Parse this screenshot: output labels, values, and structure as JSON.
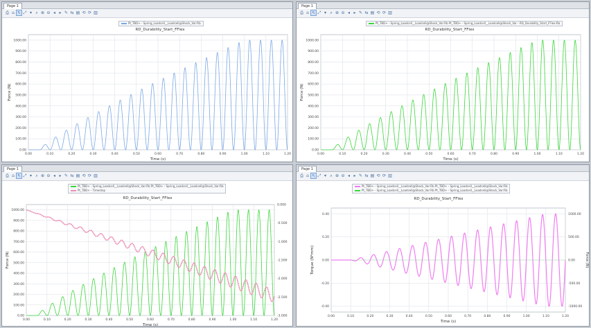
{
  "panes": [
    {
      "tab": "Page 1",
      "title": "RD_Durability_Start_FFlex",
      "legend": [
        "Pt_TBD+ - Spring_Loadcell__Loadcell@Shock_Var:Rb"
      ],
      "xlabel": "Time (s)",
      "ylabel": "Force (N)",
      "xticks": [
        "0.00",
        "0.10",
        "0.20",
        "0.30",
        "0.40",
        "0.50",
        "0.60",
        "0.70",
        "0.80",
        "0.90",
        "1.00",
        "1.10",
        "1.20"
      ],
      "yticks": [
        "0.00",
        "100.00",
        "200.00",
        "300.00",
        "400.00",
        "500.00",
        "600.00",
        "700.00",
        "800.00",
        "900.00",
        "1000.00"
      ]
    },
    {
      "tab": "Page 1",
      "title": "RD_Durability_Start_FFlex",
      "legend": [
        "Pt_TBD+ - Spring_Loadcell__Loadcell@Shock_Var:Rb   Pt_TBD+ - Spring_Loadcell__Loadcell@Shock_Var - RD_Durability_Start_FFlex:Rb"
      ],
      "xlabel": "Time (s)",
      "ylabel": "Force (N)",
      "xticks": [
        "0.00",
        "0.10",
        "0.20",
        "0.30",
        "0.40",
        "0.50",
        "0.60",
        "0.70",
        "0.80",
        "0.90",
        "1.00",
        "1.10",
        "1.20"
      ],
      "yticks": [
        "0.00",
        "100.00",
        "200.00",
        "300.00",
        "400.00",
        "500.00",
        "600.00",
        "700.00",
        "800.00",
        "900.00",
        "1000.00"
      ]
    },
    {
      "tab": "Page 1",
      "title": "RD_Durability_Start_FFlex",
      "legend": [
        "Pt_TBD+ - Spring_Loadcell__Loadcell@Shock_Var:Rb   Pt_TBD+ - Spring_Loadcell__Loadcell@Shock_Var:Rb",
        "Pt_TBD+ - Timestep"
      ],
      "xlabel": "Time (s)",
      "ylabel": "Force (N)",
      "y2label": "Angle (deg)",
      "xticks": [
        "0.00",
        "0.10",
        "0.20",
        "0.30",
        "0.40",
        "0.50",
        "0.60",
        "0.70",
        "0.80",
        "0.90",
        "1.00",
        "1.10",
        "1.20"
      ],
      "yticks": [
        "0.00",
        "100.00",
        "200.00",
        "300.00",
        "400.00",
        "500.00",
        "600.00",
        "700.00",
        "800.00",
        "900.00",
        "1000.00"
      ],
      "y2ticks": [
        "0.000",
        "-0.500",
        "-1.000",
        "-1.500",
        "-2.000",
        "-2.500",
        "-3.000"
      ]
    },
    {
      "tab": "Page 1",
      "title": "RD_Durability_Start_FFlex",
      "legend": [
        "Pt_TBD+ - Spring_Loadcell__Loadcell@Shock_Var:Rb   Pt_TBD+ - Spring_Loadcell__Loadcell@Shock_Var:Rb",
        "Pt_TBD+ - Spring_Loadcell__Loadcell@Shock_Var:Rb   Pt_TBD+ - Spring_Loadcell__Loadcell@Shock_Var:Rb"
      ],
      "xlabel": "Time (s)",
      "ylabel": "Torque (N*mm)",
      "y2label": "Force (N)",
      "xticks": [
        "0.00",
        "0.10",
        "0.20",
        "0.30",
        "0.40",
        "0.50",
        "0.60",
        "0.70",
        "0.80",
        "0.90",
        "1.00",
        "1.10",
        "1.20"
      ],
      "yticks": [
        "-0.40",
        "-0.20",
        "0.00",
        "0.20",
        "0.40"
      ],
      "y2ticks": [
        "-1000.00",
        "-500.00",
        "0.00",
        "500.00",
        "1000.00"
      ]
    }
  ],
  "colors": {
    "blue": "#7aa8e6",
    "green": "#39d638",
    "pink": "#e98db3",
    "magenta": "#ef7df0"
  },
  "chart_data": [
    {
      "type": "line",
      "title": "RD_Durability_Start_FFlex",
      "xlabel": "Time (s)",
      "ylabel": "Force (N)",
      "xlim": [
        0,
        1.2
      ],
      "ylim": [
        0,
        1050
      ],
      "series": [
        {
          "name": "Pt_TBD+ - Spring_Loadcell__Loadcell@Shock_Var:Rb",
          "color": "#7aa8e6",
          "peaks": [
            [
              0.1,
              30
            ],
            [
              0.15,
              80
            ],
            [
              0.2,
              140
            ],
            [
              0.25,
              200
            ],
            [
              0.3,
              260
            ],
            [
              0.35,
              320
            ],
            [
              0.4,
              380
            ],
            [
              0.45,
              440
            ],
            [
              0.5,
              500
            ],
            [
              0.55,
              560
            ],
            [
              0.6,
              630
            ],
            [
              0.65,
              690
            ],
            [
              0.7,
              760
            ],
            [
              0.75,
              800
            ],
            [
              0.8,
              840
            ],
            [
              0.85,
              880
            ],
            [
              0.9,
              920
            ],
            [
              0.95,
              960
            ],
            [
              1.0,
              980
            ],
            [
              1.05,
              990
            ],
            [
              1.1,
              1000
            ],
            [
              1.15,
              1000
            ]
          ]
        }
      ]
    },
    {
      "type": "line",
      "title": "RD_Durability_Start_FFlex",
      "xlabel": "Time (s)",
      "ylabel": "Force (N)",
      "xlim": [
        0,
        1.2
      ],
      "ylim": [
        0,
        1050
      ],
      "series": [
        {
          "color": "#39d638",
          "peaks": [
            [
              0.1,
              30
            ],
            [
              0.15,
              80
            ],
            [
              0.2,
              140
            ],
            [
              0.25,
              200
            ],
            [
              0.3,
              260
            ],
            [
              0.35,
              320
            ],
            [
              0.4,
              380
            ],
            [
              0.45,
              440
            ],
            [
              0.5,
              500
            ],
            [
              0.55,
              560
            ],
            [
              0.6,
              630
            ],
            [
              0.65,
              690
            ],
            [
              0.7,
              760
            ],
            [
              0.75,
              800
            ],
            [
              0.8,
              840
            ],
            [
              0.85,
              880
            ],
            [
              0.9,
              920
            ],
            [
              0.95,
              960
            ],
            [
              1.0,
              980
            ],
            [
              1.05,
              990
            ],
            [
              1.1,
              1000
            ],
            [
              1.15,
              1000
            ]
          ]
        }
      ]
    },
    {
      "type": "line",
      "title": "RD_Durability_Start_FFlex",
      "xlabel": "Time (s)",
      "ylabel": "Force (N)",
      "xlim": [
        0,
        1.2
      ],
      "ylim": [
        0,
        1050
      ],
      "series": [
        {
          "color": "#39d638",
          "peaks": [
            [
              0.1,
              30
            ],
            [
              0.2,
              140
            ],
            [
              0.3,
              260
            ],
            [
              0.4,
              380
            ],
            [
              0.5,
              500
            ],
            [
              0.6,
              630
            ],
            [
              0.7,
              760
            ],
            [
              0.8,
              840
            ],
            [
              0.9,
              920
            ],
            [
              1.0,
              980
            ],
            [
              1.1,
              1000
            ],
            [
              1.15,
              1000
            ]
          ]
        },
        {
          "name": "Pt_TBD+ - Timestep",
          "color": "#e98db3",
          "start": 1000,
          "end": 230
        }
      ]
    },
    {
      "type": "line",
      "title": "RD_Durability_Start_FFlex",
      "xlabel": "Time (s)",
      "ylabel": "Torque (N*mm)",
      "xlim": [
        0,
        1.2
      ],
      "ylim": [
        -0.45,
        0.45
      ],
      "series": [
        {
          "color": "#ef7df0",
          "amplitude_start": 0.0,
          "amplitude_end": 0.4
        }
      ]
    }
  ]
}
